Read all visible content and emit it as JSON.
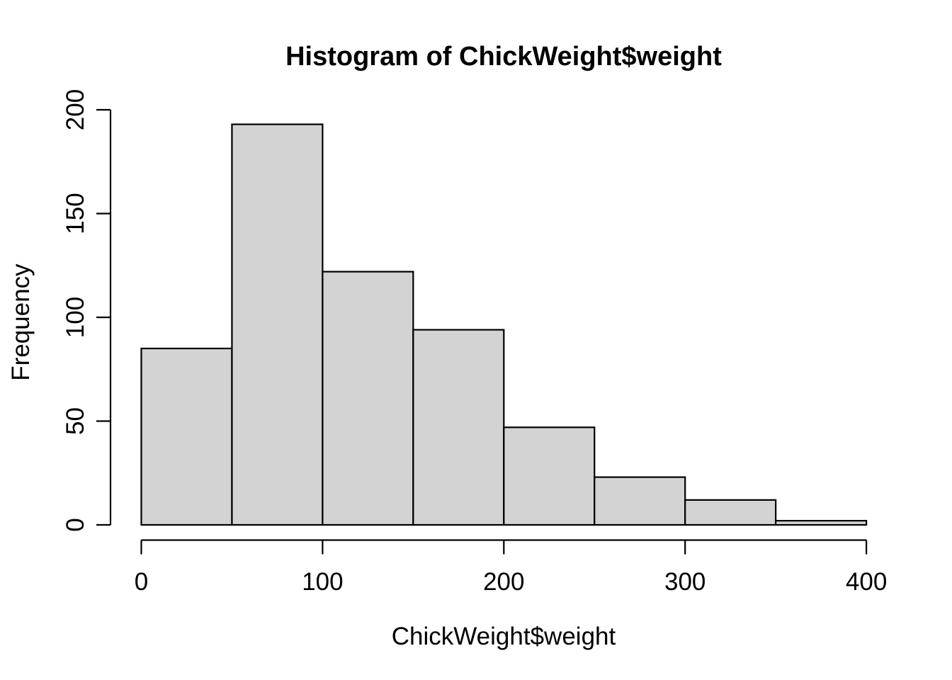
{
  "page": {
    "background": "#ffffff"
  },
  "chart_data": {
    "type": "bar",
    "subtype": "histogram",
    "title": "Histogram of ChickWeight$weight",
    "xlabel": "ChickWeight$weight",
    "ylabel": "Frequency",
    "bin_edges": [
      0,
      50,
      100,
      150,
      200,
      250,
      300,
      350,
      400
    ],
    "counts": [
      85,
      193,
      122,
      94,
      47,
      23,
      12,
      2
    ],
    "x_ticks": [
      0,
      100,
      200,
      300,
      400
    ],
    "y_ticks": [
      0,
      50,
      100,
      150,
      200
    ],
    "xlim": [
      0,
      400
    ],
    "ylim": [
      0,
      200
    ],
    "grid": false,
    "legend_position": "none",
    "colors": {
      "bar_fill": "#d3d3d3",
      "bar_border": "#000000",
      "axis": "#000000",
      "text": "#000000",
      "background": "#ffffff"
    }
  }
}
